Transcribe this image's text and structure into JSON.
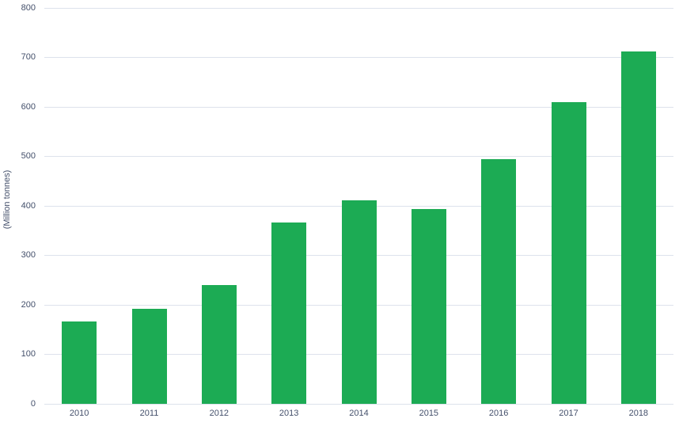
{
  "chart_data": {
    "type": "bar",
    "title": "",
    "xlabel": "",
    "ylabel": "(Million tonnes)",
    "categories": [
      "2010",
      "2011",
      "2012",
      "2013",
      "2014",
      "2015",
      "2016",
      "2017",
      "2018"
    ],
    "values": [
      167,
      192,
      240,
      367,
      411,
      394,
      494,
      610,
      712
    ],
    "ylim": [
      0,
      800
    ],
    "yticks": [
      0,
      100,
      200,
      300,
      400,
      500,
      600,
      700,
      800
    ],
    "grid": true,
    "legend_position": "none",
    "colors": {
      "bar": "#1cab54",
      "gridline": "#dde2ec",
      "axis_line": "#dde2ec",
      "text": "#44506b",
      "background": "#ffffff"
    }
  }
}
